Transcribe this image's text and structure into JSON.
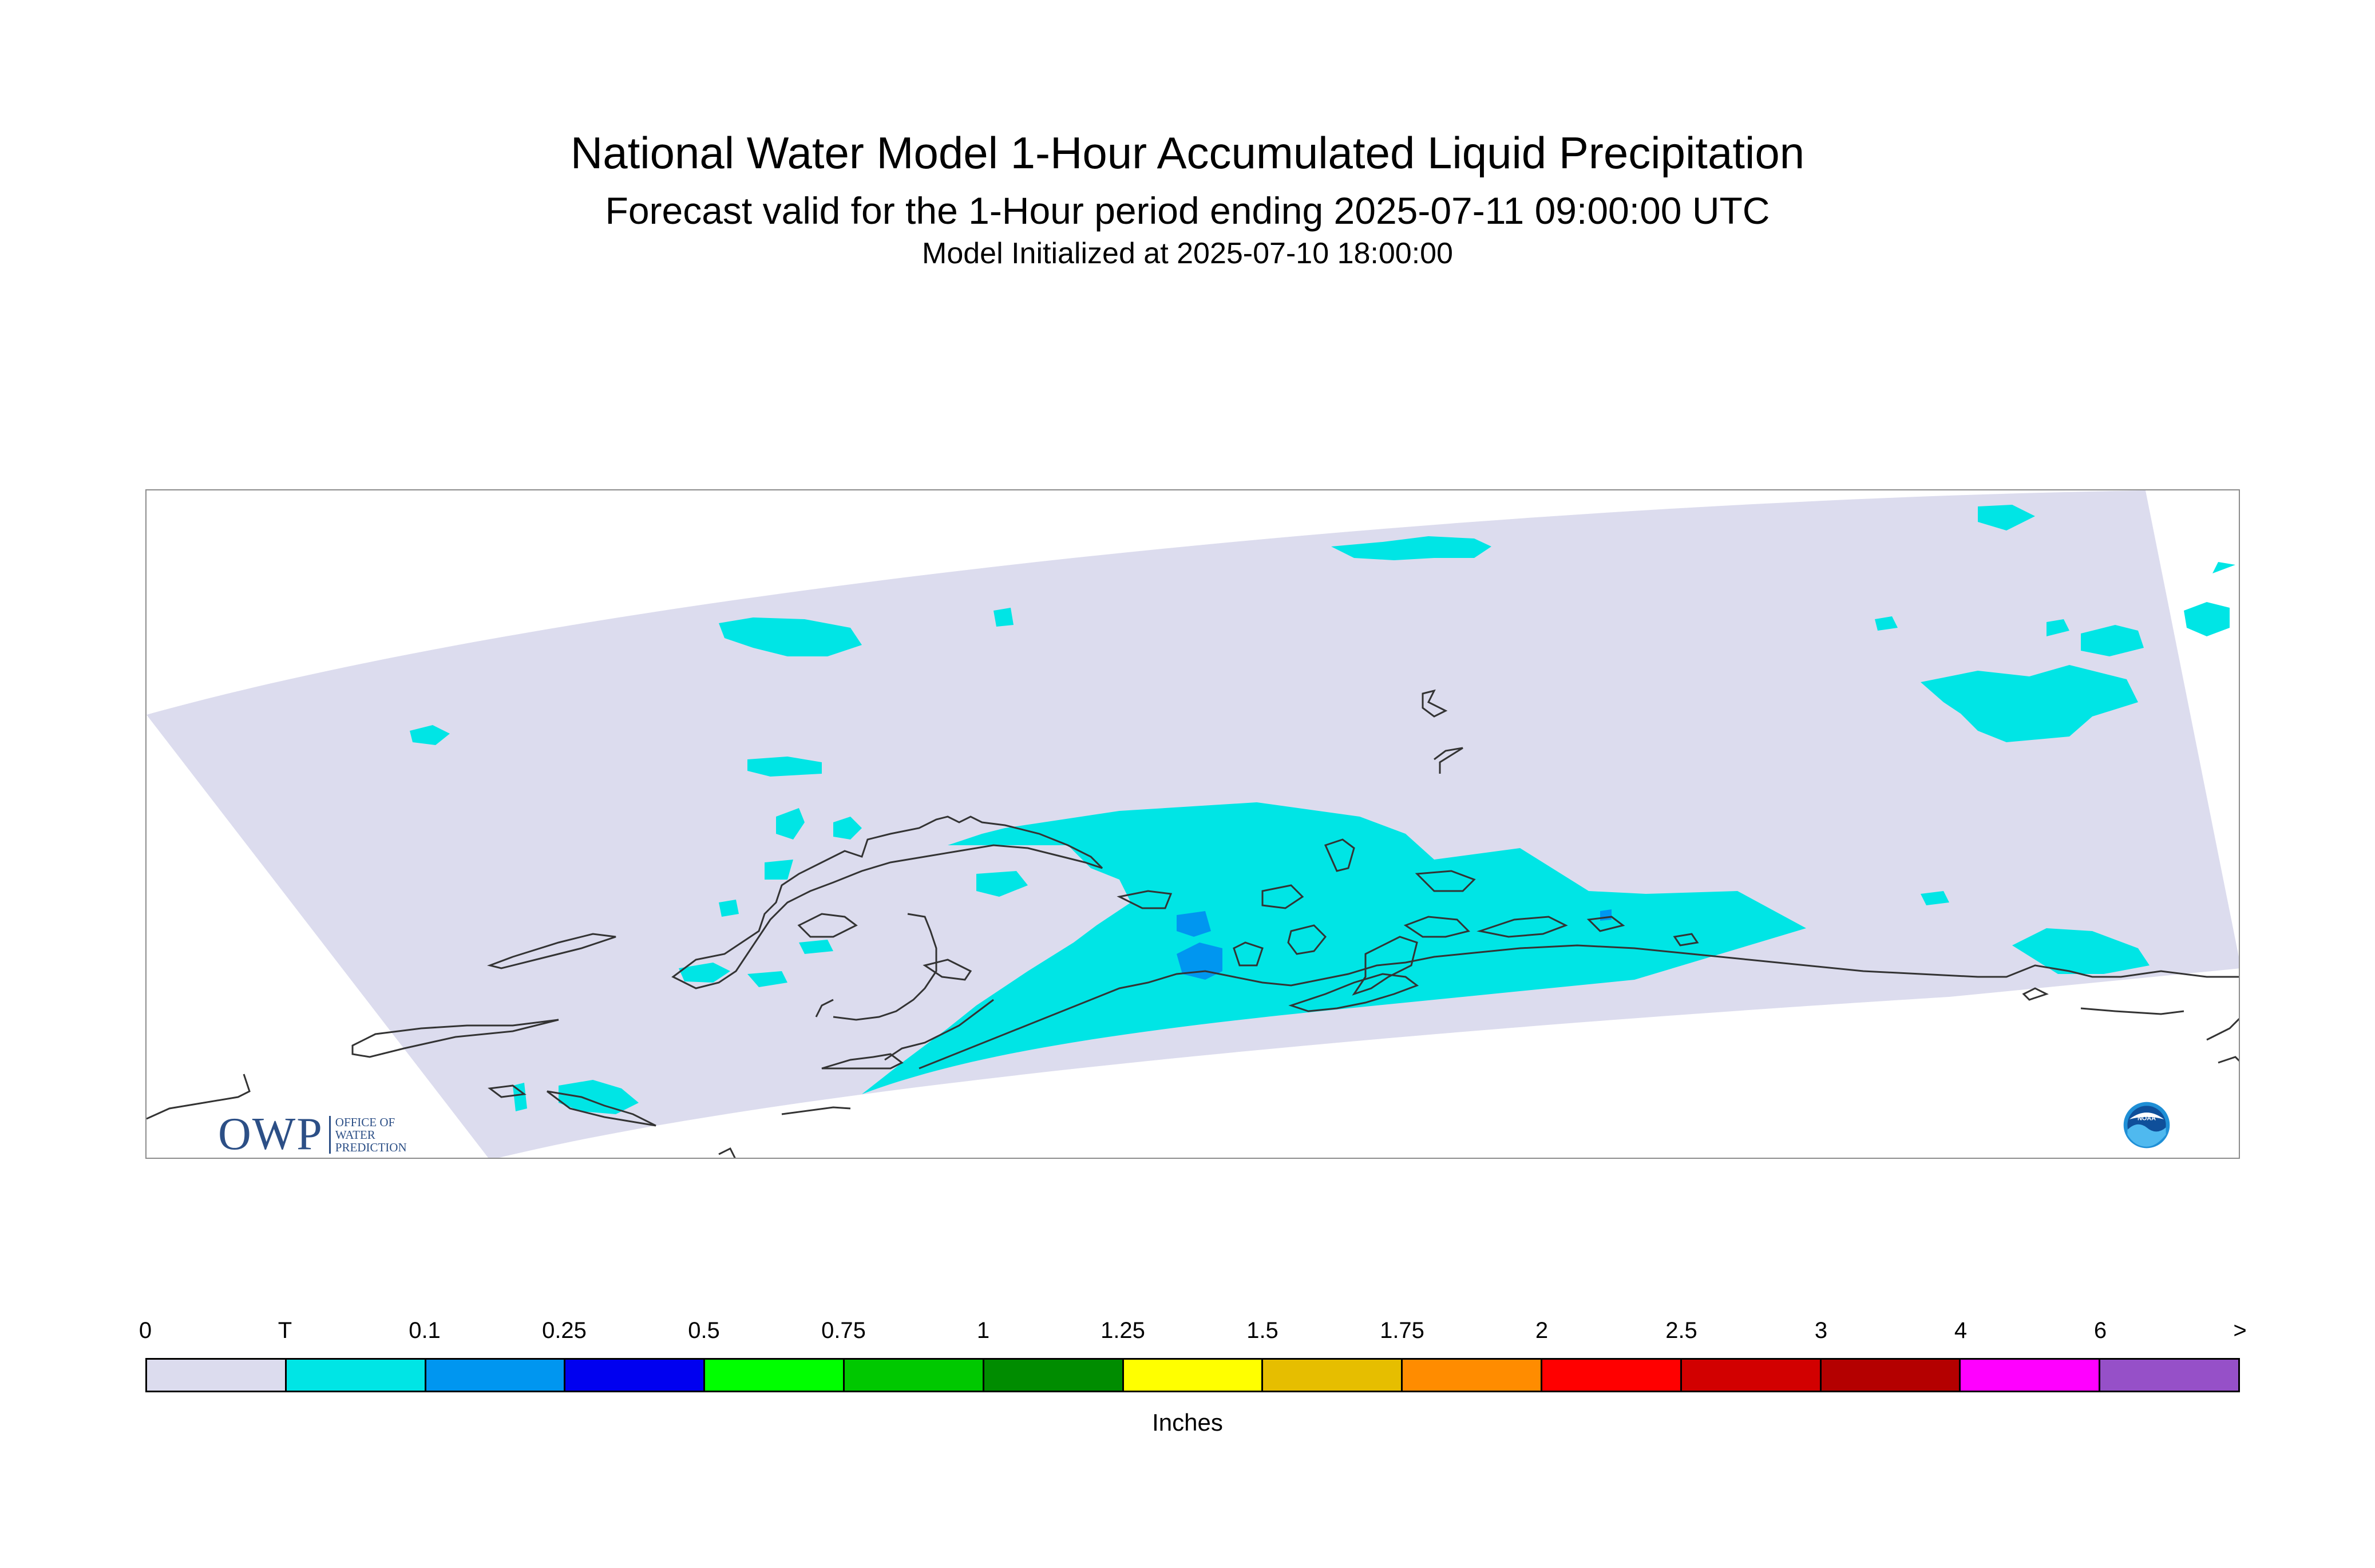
{
  "title": "National Water Model 1-Hour Accumulated Liquid Precipitation",
  "subtitle": "Forecast valid for the 1-Hour period ending 2025-07-11 09:00:00 UTC",
  "init_text": "Model Initialized at 2025-07-10 18:00:00",
  "logos": {
    "owp": {
      "letters": "OWP",
      "line1": "OFFICE OF",
      "line2": "WATER",
      "line3": "PREDICTION"
    },
    "noaa": {
      "text": "NOAA"
    }
  },
  "legend": {
    "units": "Inches",
    "ticks": [
      "0",
      "T",
      "0.1",
      "0.25",
      "0.5",
      "0.75",
      "1",
      "1.25",
      "1.5",
      "1.75",
      "2",
      "2.5",
      "3",
      "4",
      "6",
      ">"
    ],
    "colors": [
      "#dcdcee",
      "#00e5e5",
      "#0096f0",
      "#0000f0",
      "#00ff00",
      "#00c800",
      "#008c00",
      "#ffff00",
      "#e6be00",
      "#ff8c00",
      "#ff0000",
      "#d20000",
      "#b40000",
      "#ff00ff",
      "#9650c8"
    ]
  },
  "map": {
    "domain_color": "#dcdcee",
    "trace_color": "#00e5e5",
    "light_color": "#0096f0",
    "coast_color": "#333333"
  }
}
